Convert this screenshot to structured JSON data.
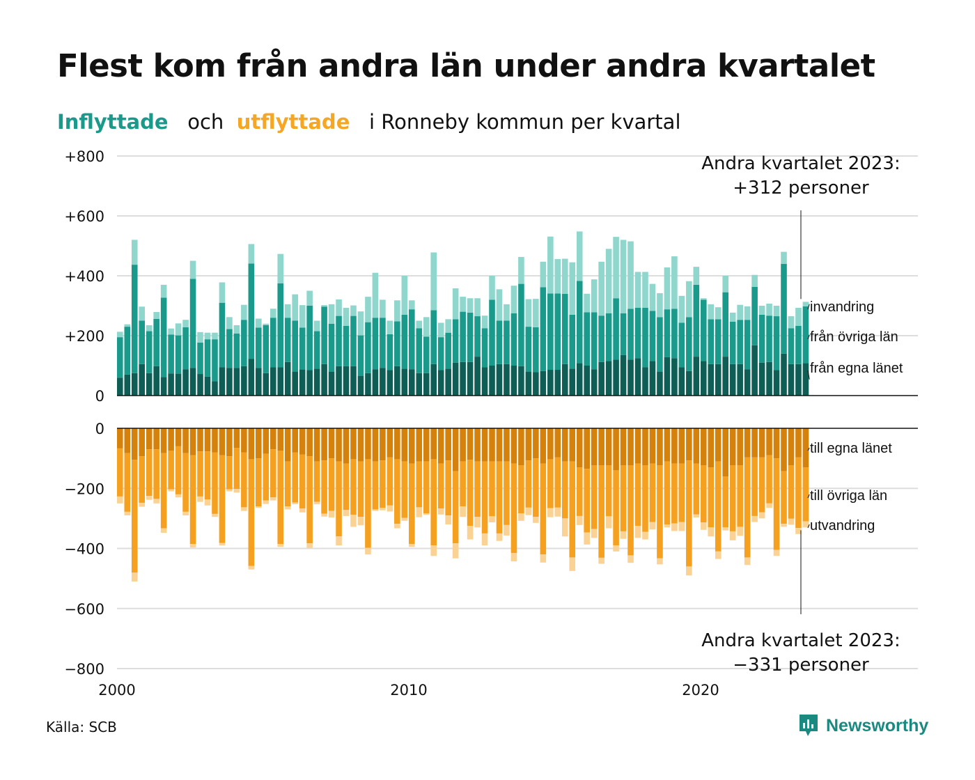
{
  "title": "Flest kom från andra län under andra kvartalet",
  "subtitle": {
    "part1": "Inflyttade",
    "part2": "och",
    "part3": "utflyttade",
    "part4": "i Ronneby  kommun  per  kvartal"
  },
  "source": "Källa: SCB",
  "logo": {
    "icon": "newsworthy-chart-icon",
    "text": "Newsworthy"
  },
  "colors": {
    "in_own": "#0f5e55",
    "in_other": "#1a9a8b",
    "in_imm": "#8fd6cd",
    "out_own": "#d4820c",
    "out_other": "#f5a01f",
    "out_emi": "#fad293",
    "grid": "#dddddd",
    "text": "#111111"
  },
  "chart_data": {
    "type": "bar",
    "stacked": true,
    "grid": true,
    "x_ticks": [
      "2000",
      "2010",
      "2020"
    ],
    "y_ticks_top": [
      "+800",
      "+600",
      "+400",
      "+200",
      "0"
    ],
    "y_ticks_bottom": [
      "0",
      "−200",
      "−400",
      "−600",
      "−800"
    ],
    "ylim_top": [
      0,
      800
    ],
    "ylim_bottom": [
      -800,
      0
    ],
    "series_labels_in": [
      "invandring",
      "från övriga län",
      "från egna länet"
    ],
    "series_labels_out": [
      "till egna länet",
      "till övriga län",
      "utvandring"
    ],
    "annotation_top": [
      "Andra kvartalet 2023:",
      "+312 personer"
    ],
    "annotation_bottom": [
      "Andra kvartalet 2023:",
      "−331 personer"
    ],
    "x_start": 2000.0,
    "x_step": 0.25,
    "inflow": {
      "from_own_county": [
        60,
        70,
        75,
        105,
        75,
        98,
        62,
        74,
        73,
        88,
        92,
        72,
        63,
        48,
        95,
        92,
        92,
        98,
        123,
        92,
        75,
        95,
        95,
        112,
        80,
        87,
        85,
        90,
        105,
        80,
        98,
        98,
        98,
        66,
        75,
        88,
        92,
        85,
        98,
        90,
        88,
        75,
        75,
        105,
        85,
        90,
        110,
        112,
        112,
        130,
        95,
        100,
        105,
        105,
        100,
        98,
        80,
        78,
        82,
        86,
        86,
        105,
        90,
        108,
        100,
        88,
        112,
        115,
        120,
        135,
        120,
        125,
        95,
        115,
        80,
        128,
        125,
        95,
        82,
        130,
        115,
        105,
        105,
        130,
        105,
        105,
        88,
        168,
        110,
        112,
        85,
        140,
        105,
        105,
        108
      ],
      "from_other_counties": [
        135,
        160,
        362,
        145,
        140,
        158,
        265,
        130,
        128,
        140,
        298,
        105,
        125,
        140,
        215,
        130,
        115,
        155,
        318,
        135,
        160,
        165,
        280,
        148,
        170,
        140,
        215,
        125,
        192,
        160,
        168,
        135,
        168,
        135,
        170,
        172,
        168,
        120,
        150,
        180,
        200,
        150,
        122,
        180,
        110,
        120,
        145,
        168,
        165,
        135,
        130,
        220,
        145,
        145,
        175,
        275,
        150,
        150,
        280,
        255,
        255,
        235,
        180,
        275,
        178,
        190,
        155,
        160,
        205,
        140,
        170,
        168,
        198,
        168,
        182,
        160,
        165,
        148,
        180,
        240,
        205,
        150,
        150,
        215,
        142,
        148,
        165,
        195,
        160,
        155,
        180,
        300,
        120,
        128,
        190
      ],
      "immigration": [
        18,
        8,
        83,
        47,
        20,
        23,
        43,
        20,
        40,
        25,
        60,
        35,
        22,
        22,
        68,
        40,
        28,
        50,
        65,
        30,
        5,
        30,
        98,
        45,
        88,
        75,
        50,
        35,
        5,
        65,
        55,
        60,
        35,
        80,
        85,
        150,
        60,
        45,
        70,
        130,
        30,
        25,
        65,
        193,
        48,
        45,
        103,
        50,
        48,
        60,
        42,
        80,
        105,
        55,
        92,
        90,
        92,
        95,
        85,
        190,
        115,
        117,
        175,
        165,
        62,
        110,
        180,
        215,
        205,
        245,
        225,
        120,
        120,
        90,
        80,
        140,
        175,
        90,
        120,
        60,
        5,
        50,
        40,
        55,
        30,
        50,
        45,
        40,
        30,
        40,
        35,
        40,
        40,
        60,
        15
      ]
    },
    "outflow": {
      "to_own_county": [
        -67,
        -83,
        -105,
        -93,
        -70,
        -70,
        -83,
        -75,
        -60,
        -83,
        -90,
        -77,
        -77,
        -80,
        -90,
        -93,
        -65,
        -80,
        -103,
        -100,
        -85,
        -70,
        -75,
        -110,
        -80,
        -87,
        -93,
        -110,
        -107,
        -100,
        -110,
        -117,
        -103,
        -110,
        -103,
        -110,
        -107,
        -97,
        -103,
        -110,
        -117,
        -110,
        -110,
        -103,
        -117,
        -107,
        -143,
        -110,
        -105,
        -110,
        -110,
        -110,
        -110,
        -110,
        -117,
        -123,
        -107,
        -100,
        -117,
        -103,
        -97,
        -110,
        -110,
        -130,
        -135,
        -123,
        -123,
        -123,
        -140,
        -123,
        -123,
        -117,
        -123,
        -117,
        -123,
        -110,
        -117,
        -117,
        -107,
        -117,
        -123,
        -130,
        -110,
        -160,
        -123,
        -123,
        -97,
        -97,
        -97,
        -90,
        -100,
        -143,
        -123,
        -97,
        -130
      ],
      "to_other_counties": [
        -160,
        -195,
        -375,
        -155,
        -155,
        -165,
        -250,
        -128,
        -160,
        -195,
        -295,
        -150,
        -160,
        -205,
        -292,
        -110,
        -137,
        -183,
        -355,
        -160,
        -155,
        -160,
        -310,
        -150,
        -167,
        -180,
        -290,
        -135,
        -177,
        -175,
        -250,
        -155,
        -185,
        -185,
        -295,
        -160,
        -158,
        -160,
        -215,
        -188,
        -268,
        -153,
        -173,
        -287,
        -150,
        -183,
        -240,
        -150,
        -220,
        -185,
        -240,
        -183,
        -240,
        -212,
        -298,
        -160,
        -157,
        -195,
        -303,
        -163,
        -167,
        -190,
        -320,
        -162,
        -212,
        -212,
        -308,
        -170,
        -250,
        -220,
        -300,
        -208,
        -222,
        -195,
        -310,
        -210,
        -200,
        -195,
        -353,
        -170,
        -190,
        -200,
        -300,
        -170,
        -220,
        -205,
        -333,
        -195,
        -183,
        -160,
        -305,
        -175,
        -178,
        -235,
        -180
      ],
      "emigration": [
        -23,
        -12,
        -30,
        -13,
        -13,
        -15,
        -15,
        -7,
        -10,
        -12,
        -12,
        -18,
        -20,
        -10,
        -8,
        -7,
        -12,
        -12,
        -12,
        -5,
        -12,
        -10,
        -10,
        -10,
        -6,
        -13,
        -15,
        -8,
        -10,
        -22,
        -30,
        -20,
        -40,
        -28,
        -22,
        -5,
        -8,
        -20,
        -15,
        -10,
        -10,
        -33,
        -5,
        -35,
        -20,
        -30,
        -50,
        -35,
        -45,
        -35,
        -40,
        -20,
        -25,
        -35,
        -28,
        -25,
        -25,
        -20,
        -27,
        -30,
        -30,
        -60,
        -45,
        -30,
        -40,
        -30,
        -20,
        -40,
        -20,
        -25,
        -25,
        -40,
        -25,
        -25,
        -20,
        -10,
        -25,
        -30,
        -30,
        -10,
        -25,
        -30,
        -25,
        -10,
        -30,
        -30,
        -25,
        -20,
        -20,
        -15,
        -20,
        -10,
        -20,
        -20,
        -20
      ]
    }
  }
}
